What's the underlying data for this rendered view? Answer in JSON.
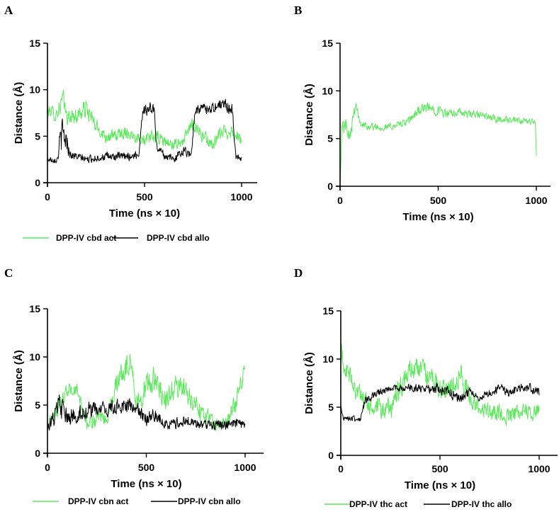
{
  "figure": {
    "colors": {
      "act": "#5ee85e",
      "allo": "#000000",
      "axis": "#000000"
    },
    "panels": [
      {
        "letter": "A",
        "chart_data": {
          "type": "line",
          "title": "",
          "xlabel": "Time (ns × 10)",
          "ylabel": "Distance (Å)",
          "xlim": [
            0,
            1000
          ],
          "ylim": [
            0,
            15
          ],
          "xticks": [
            0,
            500,
            1000
          ],
          "yticks": [
            0,
            5,
            10,
            15
          ],
          "xtick_labels": [
            "0",
            "500",
            "1000"
          ],
          "ytick_labels": [
            "0",
            "5",
            "10",
            "15"
          ],
          "legend_position": "bottom",
          "series": [
            {
              "name": "DPP-IV cbd act",
              "color": "#5ee85e",
              "x": [
                0,
                20,
                40,
                60,
                80,
                100,
                150,
                200,
                250,
                300,
                350,
                400,
                450,
                480,
                500,
                550,
                600,
                650,
                700,
                750,
                800,
                850,
                900,
                950,
                1000
              ],
              "y": [
                7.5,
                7.8,
                7.2,
                8.0,
                9.0,
                7.0,
                7.2,
                8.0,
                6.0,
                5.0,
                5.0,
                5.5,
                5.0,
                4.8,
                4.5,
                5.0,
                4.5,
                4.0,
                4.5,
                6.5,
                5.0,
                4.0,
                5.5,
                5.5,
                4.5
              ],
              "amp": [
                0.9,
                0.9,
                0.9,
                1.2,
                1.5,
                1.0,
                1.2,
                1.4,
                1.1,
                0.9,
                0.9,
                0.9,
                0.8,
                0.8,
                0.8,
                1.0,
                1.0,
                0.8,
                0.8,
                1.2,
                1.0,
                0.8,
                1.0,
                1.0,
                0.8
              ]
            },
            {
              "name": "DPP-IV cbd allo",
              "color": "#000000",
              "x": [
                0,
                50,
                70,
                90,
                120,
                200,
                300,
                400,
                470,
                490,
                550,
                560,
                600,
                650,
                700,
                740,
                760,
                800,
                850,
                900,
                950,
                970,
                1000
              ],
              "y": [
                2.5,
                2.5,
                5.0,
                5.0,
                3.0,
                2.5,
                2.8,
                2.8,
                3.0,
                7.8,
                8.0,
                4.0,
                3.0,
                2.5,
                3.5,
                3.0,
                7.8,
                8.0,
                8.0,
                8.5,
                8.0,
                3.0,
                2.5
              ],
              "amp": [
                0.4,
                0.5,
                2.5,
                2.0,
                0.6,
                0.5,
                0.6,
                0.6,
                0.6,
                0.9,
                0.9,
                0.6,
                0.6,
                0.5,
                0.7,
                0.6,
                0.8,
                0.7,
                0.7,
                0.9,
                0.9,
                0.6,
                0.4
              ]
            }
          ]
        }
      },
      {
        "letter": "B",
        "chart_data": {
          "type": "line",
          "title": "",
          "xlabel": "Time (ns × 10)",
          "ylabel": "Distance (Å)",
          "xlim": [
            0,
            1000
          ],
          "ylim": [
            0,
            15
          ],
          "xticks": [
            0,
            500,
            1000
          ],
          "yticks": [
            0,
            5,
            10,
            15
          ],
          "xtick_labels": [
            "0",
            "500",
            "1000"
          ],
          "ytick_labels": [
            "0",
            "5",
            "10",
            "15"
          ],
          "legend_position": "none",
          "series": [
            {
              "name": "",
              "color": "#5ee85e",
              "x": [
                0,
                10,
                30,
                50,
                70,
                80,
                100,
                150,
                200,
                250,
                300,
                350,
                400,
                450,
                500,
                550,
                600,
                650,
                700,
                750,
                800,
                850,
                900,
                950,
                995,
                1000
              ],
              "y": [
                0.5,
                6.0,
                6.5,
                5.5,
                8.0,
                9.0,
                6.5,
                6.3,
                6.2,
                6.2,
                6.5,
                6.8,
                8.0,
                8.2,
                8.0,
                7.5,
                7.8,
                7.5,
                7.5,
                7.3,
                7.0,
                7.0,
                6.8,
                6.8,
                6.8,
                3.0
              ],
              "amp": [
                0.5,
                1.5,
                1.2,
                1.2,
                1.5,
                1.0,
                0.5,
                0.5,
                0.5,
                0.5,
                0.5,
                0.6,
                0.8,
                0.8,
                0.7,
                0.6,
                0.6,
                0.6,
                0.6,
                0.5,
                0.5,
                0.5,
                0.5,
                0.5,
                0.5,
                0.3
              ]
            }
          ]
        }
      },
      {
        "letter": "C",
        "chart_data": {
          "type": "line",
          "title": "",
          "xlabel": "Time (ns × 10)",
          "ylabel": "Distance (Å)",
          "xlim": [
            0,
            1000
          ],
          "ylim": [
            0,
            15
          ],
          "xticks": [
            0,
            500,
            1000
          ],
          "yticks": [
            0,
            5,
            10,
            15
          ],
          "xtick_labels": [
            "0",
            "500",
            "1000"
          ],
          "ytick_labels": [
            "0",
            "5",
            "10",
            "15"
          ],
          "legend_position": "bottom",
          "series": [
            {
              "name": "DPP-IV cbn act",
              "color": "#5ee85e",
              "x": [
                0,
                50,
                100,
                150,
                200,
                250,
                300,
                350,
                400,
                420,
                450,
                500,
                550,
                600,
                650,
                700,
                750,
                800,
                850,
                900,
                950,
                1000
              ],
              "y": [
                3.0,
                4.5,
                6.5,
                6.5,
                3.0,
                3.5,
                3.5,
                7.5,
                9.0,
                10.0,
                5.0,
                7.0,
                7.5,
                5.5,
                7.0,
                6.5,
                5.0,
                4.0,
                3.0,
                3.0,
                5.0,
                9.0
              ],
              "amp": [
                0.8,
                1.0,
                1.0,
                1.0,
                1.0,
                1.0,
                1.0,
                1.5,
                1.8,
                1.5,
                1.5,
                1.8,
                1.8,
                1.5,
                1.5,
                1.5,
                1.5,
                1.2,
                1.0,
                1.0,
                1.5,
                1.2
              ]
            },
            {
              "name": "DPP-IV cbn allo",
              "color": "#000000",
              "x": [
                0,
                30,
                60,
                100,
                150,
                200,
                250,
                300,
                350,
                400,
                450,
                500,
                550,
                600,
                650,
                700,
                750,
                800,
                850,
                900,
                950,
                1000
              ],
              "y": [
                3.0,
                3.5,
                5.0,
                3.5,
                4.0,
                4.5,
                4.5,
                4.5,
                4.8,
                5.0,
                4.5,
                3.5,
                4.0,
                3.0,
                3.0,
                3.5,
                3.0,
                3.0,
                3.0,
                3.0,
                3.0,
                2.8
              ],
              "amp": [
                1.0,
                1.2,
                1.8,
                1.2,
                1.2,
                1.2,
                1.0,
                1.0,
                1.0,
                1.0,
                1.0,
                1.0,
                1.0,
                0.8,
                0.8,
                0.8,
                0.7,
                0.7,
                0.7,
                0.7,
                0.8,
                0.8
              ]
            }
          ]
        }
      },
      {
        "letter": "D",
        "chart_data": {
          "type": "line",
          "title": "",
          "xlabel": "Time (ns × 10)",
          "ylabel": "Distance (Å)",
          "xlim": [
            0,
            1000
          ],
          "ylim": [
            0,
            15
          ],
          "xticks": [
            0,
            500,
            1000
          ],
          "yticks": [
            0,
            5,
            10,
            15
          ],
          "xtick_labels": [
            "0",
            "500",
            "1000"
          ],
          "ytick_labels": [
            "0",
            "5",
            "10",
            "15"
          ],
          "legend_position": "bottom",
          "series": [
            {
              "name": "DPP-IV thc act",
              "color": "#5ee85e",
              "x": [
                0,
                20,
                50,
                100,
                150,
                200,
                250,
                300,
                350,
                400,
                450,
                500,
                550,
                600,
                650,
                700,
                750,
                800,
                850,
                900,
                950,
                1000
              ],
              "y": [
                11.0,
                9.0,
                8.0,
                6.0,
                5.0,
                4.5,
                5.0,
                7.0,
                9.0,
                9.0,
                8.0,
                7.0,
                7.0,
                8.5,
                6.0,
                5.0,
                4.5,
                4.5,
                4.0,
                4.5,
                4.5,
                4.5
              ],
              "amp": [
                1.5,
                1.5,
                1.5,
                1.5,
                1.5,
                1.5,
                1.5,
                1.8,
                1.5,
                1.5,
                1.5,
                1.5,
                1.5,
                1.8,
                1.5,
                1.2,
                1.2,
                1.2,
                1.2,
                1.2,
                1.0,
                1.0
              ]
            },
            {
              "name": "DPP-IV thc allo",
              "color": "#000000",
              "x": [
                0,
                10,
                50,
                100,
                120,
                150,
                200,
                250,
                300,
                350,
                400,
                450,
                500,
                550,
                600,
                650,
                700,
                750,
                800,
                850,
                900,
                950,
                1000
              ],
              "y": [
                5.0,
                4.0,
                3.8,
                3.8,
                5.5,
                6.0,
                6.5,
                7.0,
                7.0,
                7.0,
                7.0,
                7.0,
                7.0,
                6.5,
                6.0,
                6.5,
                6.0,
                6.5,
                7.0,
                6.5,
                7.0,
                7.0,
                6.5
              ],
              "amp": [
                0.4,
                0.4,
                0.4,
                0.4,
                0.6,
                0.6,
                0.5,
                0.5,
                0.5,
                0.5,
                0.6,
                0.7,
                0.8,
                0.8,
                0.8,
                0.6,
                0.5,
                0.5,
                0.7,
                0.6,
                0.6,
                0.6,
                0.6
              ]
            }
          ]
        }
      }
    ]
  }
}
